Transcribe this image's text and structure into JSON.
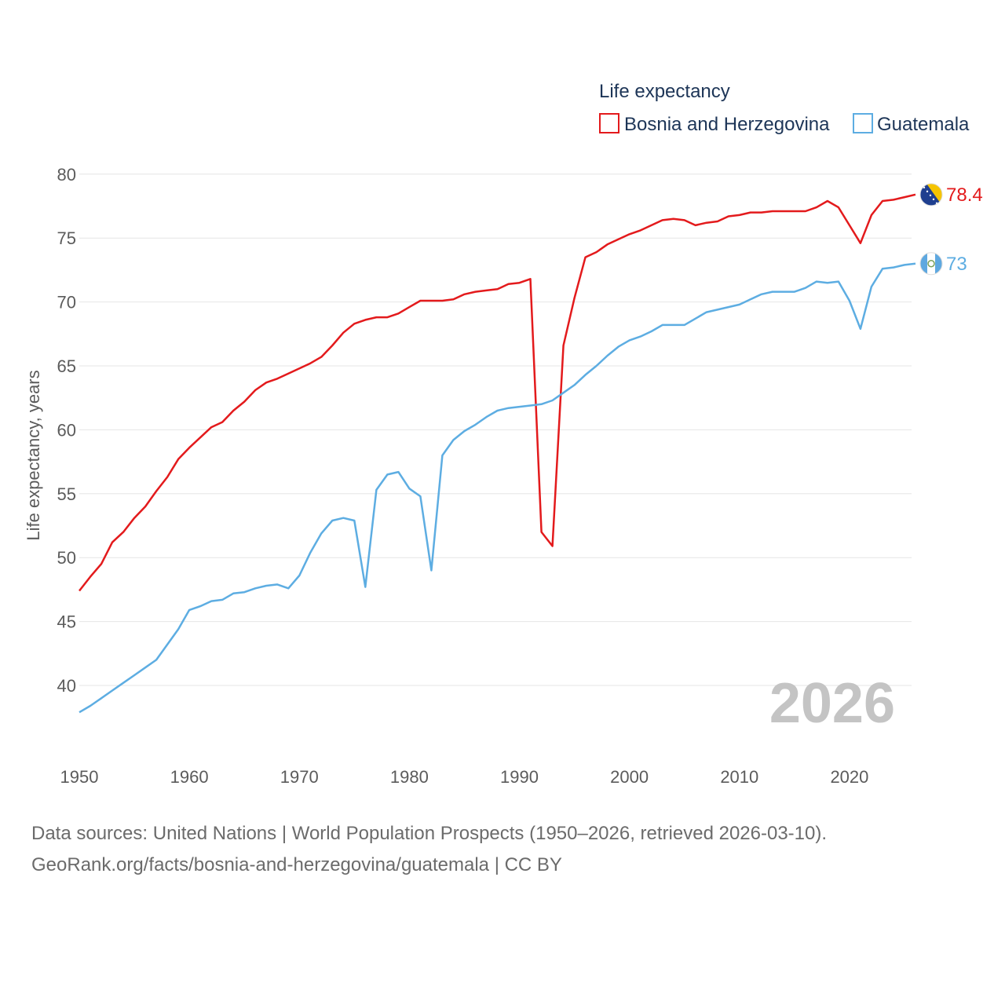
{
  "legend": {
    "title": "Life expectancy"
  },
  "footer": {
    "sources": "Data sources: United Nations | World Population Prospects (1950–2026, retrieved 2026-03-10).",
    "attribution": "GeoRank.org/facts/bosnia-and-herzegovina/guatemala | CC BY"
  },
  "chart_data": {
    "type": "line",
    "title": "Life expectancy",
    "xlabel": "",
    "ylabel": "Life expectancy, years",
    "xlim": [
      1950,
      2026
    ],
    "ylim": [
      36,
      82
    ],
    "x_ticks": [
      1950,
      1960,
      1970,
      1980,
      1990,
      2000,
      2010,
      2020
    ],
    "y_ticks": [
      40,
      45,
      50,
      55,
      60,
      65,
      70,
      75,
      80
    ],
    "grid": true,
    "legend_position": "top-right",
    "year_label": "2026",
    "x": [
      1950,
      1951,
      1952,
      1953,
      1954,
      1955,
      1956,
      1957,
      1958,
      1959,
      1960,
      1961,
      1962,
      1963,
      1964,
      1965,
      1966,
      1967,
      1968,
      1969,
      1970,
      1971,
      1972,
      1973,
      1974,
      1975,
      1976,
      1977,
      1978,
      1979,
      1980,
      1981,
      1982,
      1983,
      1984,
      1985,
      1986,
      1987,
      1988,
      1989,
      1990,
      1991,
      1992,
      1993,
      1994,
      1995,
      1996,
      1997,
      1998,
      1999,
      2000,
      2001,
      2002,
      2003,
      2004,
      2005,
      2006,
      2007,
      2008,
      2009,
      2010,
      2011,
      2012,
      2013,
      2014,
      2015,
      2016,
      2017,
      2018,
      2019,
      2020,
      2021,
      2022,
      2023,
      2024,
      2025,
      2026
    ],
    "series": [
      {
        "name": "Bosnia and Herzegovina",
        "color": "#e31a1c",
        "end_label": "78.4",
        "flag": "bosnia-flag-icon",
        "values": [
          47.4,
          48.5,
          49.5,
          51.2,
          52.0,
          53.1,
          54.0,
          55.2,
          56.3,
          57.7,
          58.6,
          59.4,
          60.2,
          60.6,
          61.5,
          62.2,
          63.1,
          63.7,
          64.0,
          64.4,
          64.8,
          65.2,
          65.7,
          66.6,
          67.6,
          68.3,
          68.6,
          68.8,
          68.8,
          69.1,
          69.6,
          70.1,
          70.1,
          70.1,
          70.2,
          70.6,
          70.8,
          70.9,
          71.0,
          71.4,
          71.5,
          71.8,
          52.0,
          50.9,
          66.6,
          70.3,
          73.5,
          73.9,
          74.5,
          74.9,
          75.3,
          75.6,
          76.0,
          76.4,
          76.5,
          76.4,
          76.0,
          76.2,
          76.3,
          76.7,
          76.8,
          77.0,
          77.0,
          77.1,
          77.1,
          77.1,
          77.1,
          77.4,
          77.9,
          77.4,
          76.0,
          74.6,
          76.8,
          77.9,
          78.0,
          78.2,
          78.4
        ]
      },
      {
        "name": "Guatemala",
        "color": "#5dade2",
        "end_label": "73",
        "flag": "guatemala-flag-icon",
        "values": [
          37.9,
          38.4,
          39.0,
          39.6,
          40.2,
          40.8,
          41.4,
          42.0,
          43.2,
          44.4,
          45.9,
          46.2,
          46.6,
          46.7,
          47.2,
          47.3,
          47.6,
          47.8,
          47.9,
          47.6,
          48.6,
          50.4,
          51.9,
          52.9,
          53.1,
          52.9,
          47.7,
          55.3,
          56.5,
          56.7,
          55.4,
          54.8,
          49.0,
          58.0,
          59.2,
          59.9,
          60.4,
          61.0,
          61.5,
          61.7,
          61.8,
          61.9,
          62.0,
          62.3,
          62.9,
          63.5,
          64.3,
          65.0,
          65.8,
          66.5,
          67.0,
          67.3,
          67.7,
          68.2,
          68.2,
          68.2,
          68.7,
          69.2,
          69.4,
          69.6,
          69.8,
          70.2,
          70.6,
          70.8,
          70.8,
          70.8,
          71.1,
          71.6,
          71.5,
          71.6,
          70.1,
          67.9,
          71.2,
          72.6,
          72.7,
          72.9,
          73.0
        ]
      }
    ]
  }
}
